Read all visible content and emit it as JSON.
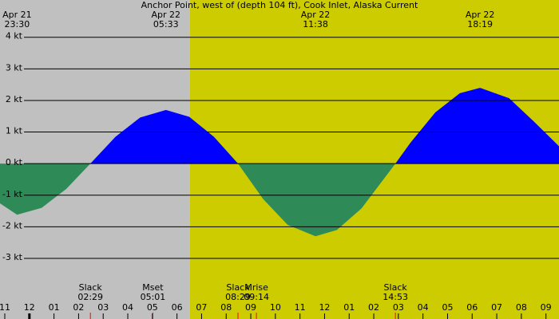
{
  "chart_data": {
    "type": "area",
    "title": "Anchor Point, west of (depth 104 ft), Cook Inlet, Alaska Current",
    "x": [
      22.805,
      23.5,
      24.5,
      25.5,
      26.48,
      27.5,
      28.5,
      29.55,
      30.5,
      31.5,
      32.48,
      33.5,
      34.5,
      35.63,
      36.5,
      37.5,
      38.88,
      39.5,
      40.5,
      41.5,
      42.32,
      43.5,
      44.5,
      45.53
    ],
    "values": [
      -1.26,
      -1.62,
      -1.4,
      -0.8,
      0,
      0.85,
      1.46,
      1.7,
      1.48,
      0.85,
      0,
      -1.12,
      -1.94,
      -2.3,
      -2.1,
      -1.42,
      0,
      0.67,
      1.62,
      2.23,
      2.4,
      2.07,
      1.34,
      0.55
    ],
    "positive_color": "#0000ff",
    "negative_color": "#2e8b57",
    "night_color": "#c0c0c0",
    "day_color": "#cccc00",
    "daylight_start": 30.53,
    "xlim": [
      22.805,
      45.53
    ],
    "ylim": [
      -4.92,
      5.18
    ],
    "yticks": [
      {
        "value": 4,
        "label": "4 kt"
      },
      {
        "value": 3,
        "label": "3 kt"
      },
      {
        "value": 2,
        "label": "2 kt"
      },
      {
        "value": 1,
        "label": "1 kt"
      },
      {
        "value": 0,
        "label": "0 kt"
      },
      {
        "value": -1,
        "label": "-1 kt"
      },
      {
        "value": -2,
        "label": "-2 kt"
      },
      {
        "value": -3,
        "label": "-3 kt"
      }
    ],
    "xticks": [
      {
        "value": 23,
        "label": "11"
      },
      {
        "value": 24,
        "label": "12"
      },
      {
        "value": 25,
        "label": "01"
      },
      {
        "value": 26,
        "label": "02"
      },
      {
        "value": 27,
        "label": "03"
      },
      {
        "value": 28,
        "label": "04"
      },
      {
        "value": 29,
        "label": "05"
      },
      {
        "value": 30,
        "label": "06"
      },
      {
        "value": 31,
        "label": "07"
      },
      {
        "value": 32,
        "label": "08"
      },
      {
        "value": 33,
        "label": "09"
      },
      {
        "value": 34,
        "label": "10"
      },
      {
        "value": 35,
        "label": "11"
      },
      {
        "value": 36,
        "label": "12"
      },
      {
        "value": 37,
        "label": "01"
      },
      {
        "value": 38,
        "label": "02"
      },
      {
        "value": 39,
        "label": "03"
      },
      {
        "value": 40,
        "label": "04"
      },
      {
        "value": 41,
        "label": "05"
      },
      {
        "value": 42,
        "label": "06"
      },
      {
        "value": 43,
        "label": "07"
      },
      {
        "value": 44,
        "label": "08"
      },
      {
        "value": 45,
        "label": "09"
      }
    ],
    "extreme_labels": [
      {
        "date": "Apr 21",
        "time": "23:30",
        "x": 23.5
      },
      {
        "date": "Apr 22",
        "time": "05:33",
        "x": 29.55
      },
      {
        "date": "Apr 22",
        "time": "11:38",
        "x": 35.63
      },
      {
        "date": "Apr 22",
        "time": "18:19",
        "x": 42.32
      }
    ],
    "events": [
      {
        "name": "Slack",
        "time": "02:29",
        "x": 26.48
      },
      {
        "name": "Mset",
        "time": "05:01",
        "x": 29.02
      },
      {
        "name": "Slack",
        "time": "08:29",
        "x": 32.48
      },
      {
        "name": "Mrise",
        "time": "09:14",
        "x": 33.23
      },
      {
        "name": "Slack",
        "time": "14:53",
        "x": 38.88
      }
    ],
    "event_color": "#ff0000"
  }
}
